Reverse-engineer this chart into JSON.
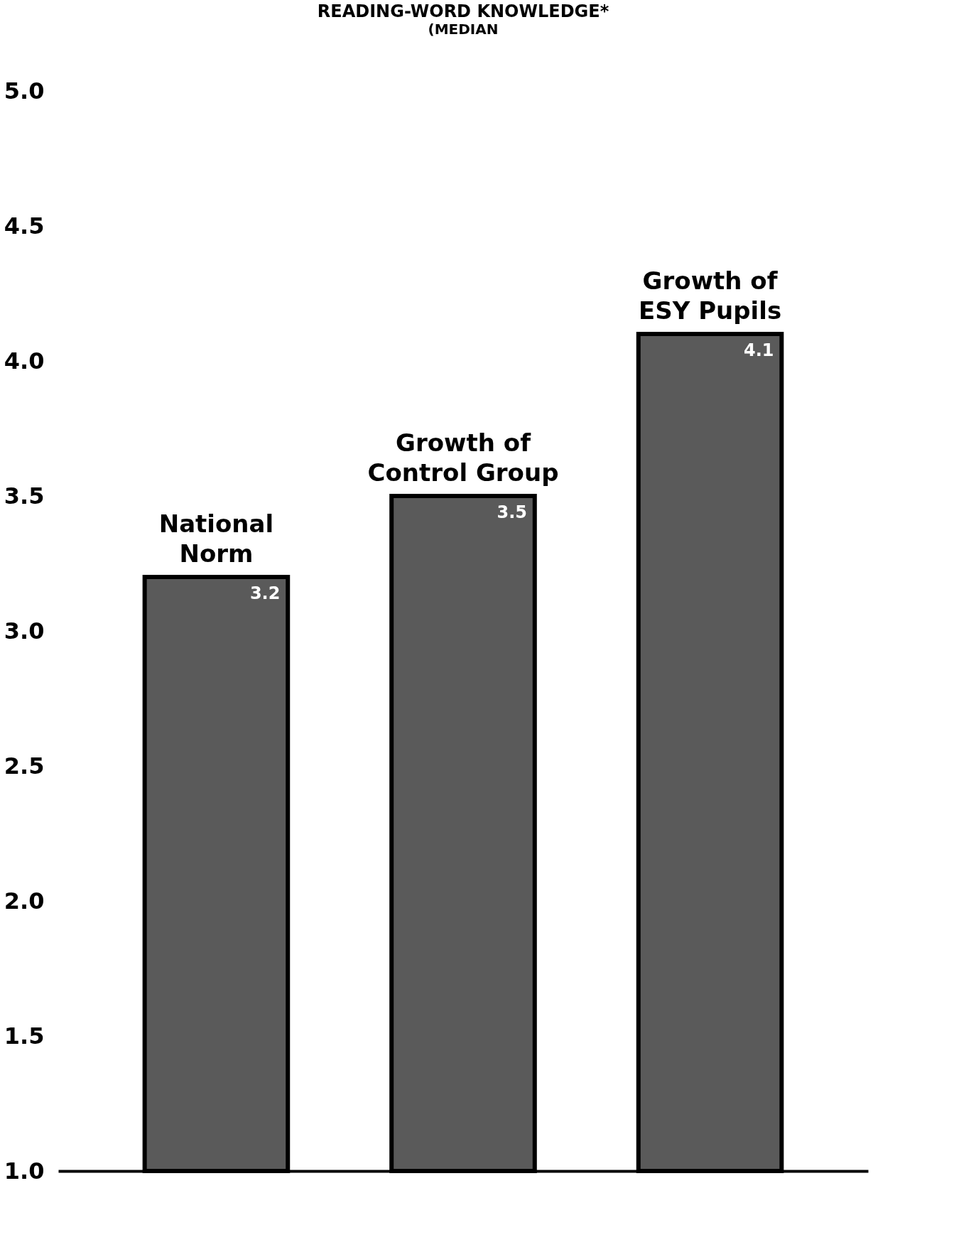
{
  "chart_data": {
    "type": "bar",
    "title": "READING-WORD KNOWLEDGE*",
    "subtitle": "(MEDIAN",
    "categories": [
      "National Norm",
      "Growth of Control Group",
      "Growth of ESY Pupils"
    ],
    "values": [
      3.2,
      3.5,
      4.1
    ],
    "color": "#5a5a5a",
    "ylim": [
      1.0,
      5.0
    ],
    "yticks": [
      {
        "value": 1.0,
        "label": "1.0"
      },
      {
        "value": 1.5,
        "label": "1.5"
      },
      {
        "value": 2.0,
        "label": "2.0"
      },
      {
        "value": 2.5,
        "label": "2.5"
      },
      {
        "value": 3.0,
        "label": "3.0"
      },
      {
        "value": 3.5,
        "label": "3.5"
      },
      {
        "value": 4.0,
        "label": "4.0"
      },
      {
        "value": 4.5,
        "label": "4.5"
      },
      {
        "value": 5.0,
        "label": "5.0"
      }
    ],
    "data_labels": true,
    "grid": false,
    "tick_labels": "y"
  }
}
